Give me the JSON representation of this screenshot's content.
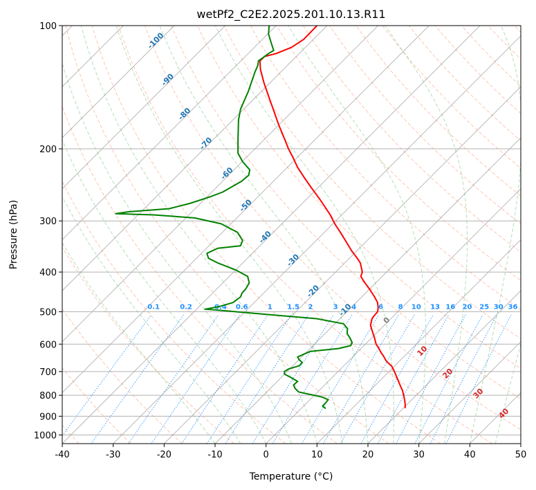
{
  "chart_data": {
    "type": "line",
    "title": "wetPf2_C2E2.2025.201.10.13.R11",
    "xlabel": "Temperature (°C)",
    "ylabel": "Pressure (hPa)",
    "xlim": [
      -40,
      50
    ],
    "ylim": [
      1050,
      100
    ],
    "y_scale": "log",
    "x_ticks": [
      -40,
      -30,
      -20,
      -10,
      0,
      10,
      20,
      30,
      40,
      50
    ],
    "y_ticks": [
      100,
      200,
      300,
      400,
      500,
      600,
      700,
      800,
      900,
      1000
    ],
    "grid": "horizontal",
    "colors": {
      "temperature": "#ff0000",
      "dewpoint": "#008000",
      "isotherm": "#808080",
      "dry_adiabat": "#ff7f50",
      "moist_adiabat": "#2ca02c",
      "mixing_ratio": "#1e90ff",
      "isotherm_label": "#1f77b4",
      "wet_bulb_label": "#d62728"
    },
    "series": [
      {
        "key": "temperature",
        "points": [
          [
            27.3,
            860
          ],
          [
            27.3,
            840
          ],
          [
            27.2,
            820
          ],
          [
            27.0,
            800
          ],
          [
            26.8,
            780
          ],
          [
            26.4,
            760
          ],
          [
            26.0,
            740
          ],
          [
            25.6,
            720
          ],
          [
            25.2,
            700
          ],
          [
            24.7,
            680
          ],
          [
            23.6,
            660
          ],
          [
            23.0,
            640
          ],
          [
            22.6,
            630
          ],
          [
            22.0,
            610
          ],
          [
            21.6,
            600
          ],
          [
            21.3,
            580
          ],
          [
            20.9,
            560
          ],
          [
            20.5,
            540
          ],
          [
            20.8,
            520
          ],
          [
            21.3,
            510
          ],
          [
            21.9,
            500
          ],
          [
            22.0,
            490
          ],
          [
            21.9,
            475
          ],
          [
            21.3,
            460
          ],
          [
            20.3,
            440
          ],
          [
            19.4,
            425
          ],
          [
            18.6,
            410
          ],
          [
            18.9,
            400
          ],
          [
            18.5,
            380
          ],
          [
            17.9,
            370
          ],
          [
            16.8,
            355
          ],
          [
            15.9,
            340
          ],
          [
            14.6,
            320
          ],
          [
            13.5,
            305
          ],
          [
            12.6,
            290
          ],
          [
            11.8,
            280
          ],
          [
            10.5,
            265
          ],
          [
            9.0,
            250
          ],
          [
            7.5,
            235
          ],
          [
            6.2,
            222
          ],
          [
            5.3,
            210
          ],
          [
            4.4,
            200
          ],
          [
            3.7,
            190
          ],
          [
            2.5,
            175
          ],
          [
            1.4,
            160
          ],
          [
            0.6,
            150
          ],
          [
            -0.4,
            138
          ],
          [
            -1.1,
            128
          ],
          [
            -1.2,
            122
          ],
          [
            -0.3,
            119
          ],
          [
            2.0,
            117
          ],
          [
            5.0,
            113
          ],
          [
            7.4,
            108
          ],
          [
            10.0,
            100
          ]
        ]
      },
      {
        "key": "dewpoint",
        "points": [
          [
            11.7,
            862
          ],
          [
            11.1,
            850
          ],
          [
            11.7,
            835
          ],
          [
            12.2,
            820
          ],
          [
            11.0,
            808
          ],
          [
            9.0,
            798
          ],
          [
            6.4,
            785
          ],
          [
            5.7,
            770
          ],
          [
            5.4,
            755
          ],
          [
            6.2,
            740
          ],
          [
            5.0,
            725
          ],
          [
            3.6,
            710
          ],
          [
            3.6,
            700
          ],
          [
            4.4,
            690
          ],
          [
            6.5,
            678
          ],
          [
            7.1,
            665
          ],
          [
            6.5,
            655
          ],
          [
            6.2,
            645
          ],
          [
            7.4,
            635
          ],
          [
            8.7,
            625
          ],
          [
            14.2,
            615
          ],
          [
            16.6,
            605
          ],
          [
            16.9,
            595
          ],
          [
            16.5,
            580
          ],
          [
            15.9,
            565
          ],
          [
            16.0,
            550
          ],
          [
            15.2,
            535
          ],
          [
            10.0,
            520
          ],
          [
            2.0,
            510
          ],
          [
            -6.0,
            500
          ],
          [
            -10.0,
            495
          ],
          [
            -12.0,
            493
          ],
          [
            -9.0,
            485
          ],
          [
            -6.5,
            475
          ],
          [
            -5.0,
            460
          ],
          [
            -4.7,
            450
          ],
          [
            -4.0,
            440
          ],
          [
            -3.3,
            425
          ],
          [
            -3.6,
            410
          ],
          [
            -6.0,
            395
          ],
          [
            -9.5,
            380
          ],
          [
            -11.3,
            370
          ],
          [
            -11.6,
            360
          ],
          [
            -9.5,
            350
          ],
          [
            -5.0,
            345
          ],
          [
            -4.6,
            335
          ],
          [
            -5.6,
            320
          ],
          [
            -8.8,
            305
          ],
          [
            -14.0,
            295
          ],
          [
            -22.0,
            290
          ],
          [
            -29.5,
            288
          ],
          [
            -27.0,
            285
          ],
          [
            -19.0,
            280
          ],
          [
            -15.0,
            272
          ],
          [
            -11.0,
            262
          ],
          [
            -8.5,
            255
          ],
          [
            -6.8,
            248
          ],
          [
            -4.8,
            240
          ],
          [
            -3.4,
            232
          ],
          [
            -3.2,
            225
          ],
          [
            -4.6,
            215
          ],
          [
            -5.5,
            205
          ],
          [
            -5.5,
            190
          ],
          [
            -5.4,
            170
          ],
          [
            -5.0,
            160
          ],
          [
            -3.5,
            145
          ],
          [
            -2.2,
            130
          ],
          [
            -1.6,
            125
          ],
          [
            -1.5,
            122
          ],
          [
            0.5,
            117
          ],
          [
            1.5,
            115
          ],
          [
            1.0,
            110
          ],
          [
            0.5,
            105
          ],
          [
            0.6,
            100
          ]
        ]
      }
    ],
    "isotherm_labels": [
      -100,
      -90,
      -80,
      -70,
      -60,
      -50,
      -40,
      -30,
      -20,
      -10
    ],
    "mixing_ratio_labels": [
      "0.1",
      "0.2",
      "0.4",
      "0.6",
      "1",
      "1.5",
      "2",
      "3",
      "4",
      "6",
      "8",
      "10",
      "13",
      "16",
      "20",
      "25",
      "30",
      "36"
    ],
    "wet_bulb_labels": [
      "0",
      "10",
      "20",
      "30",
      "40"
    ]
  }
}
